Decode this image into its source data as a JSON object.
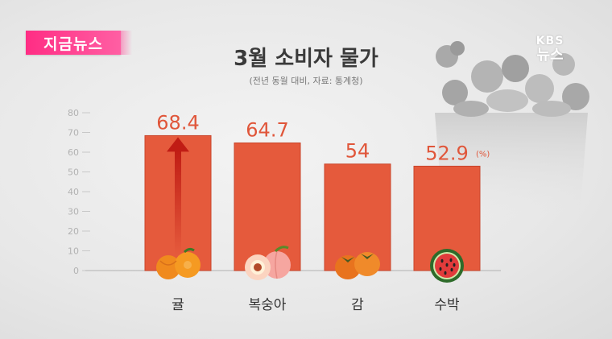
{
  "badge": "지금뉴스",
  "title": "3월 소비자 물가",
  "subtitle": "(전년 동월 대비, 자료: 통계청)",
  "logo": {
    "line1": "KBS",
    "line2": "뉴스"
  },
  "colors": {
    "bar": "#e55a3c",
    "bar_edge": "#c9452b",
    "value_label": "#e0563a",
    "arrow": "#c01c14",
    "axis": "#c4c4c4",
    "badge": "#ff3a8c"
  },
  "chart_data": {
    "type": "bar",
    "title": "3월 소비자 물가",
    "subtitle": "(전년 동월 대비, 자료: 통계청)",
    "categories": [
      "귤",
      "복숭아",
      "감",
      "수박"
    ],
    "values": [
      68.4,
      64.7,
      54,
      52.9
    ],
    "value_labels": [
      "68.4",
      "64.7",
      "54",
      "52.9"
    ],
    "unit_label": "(%)",
    "ylim": [
      0,
      80
    ],
    "yticks": [
      0,
      10,
      20,
      30,
      40,
      50,
      60,
      70,
      80
    ],
    "icons": [
      "tangerine-icon",
      "peach-icon",
      "persimmon-icon",
      "watermelon-icon"
    ],
    "grid": false,
    "legend": "none"
  }
}
